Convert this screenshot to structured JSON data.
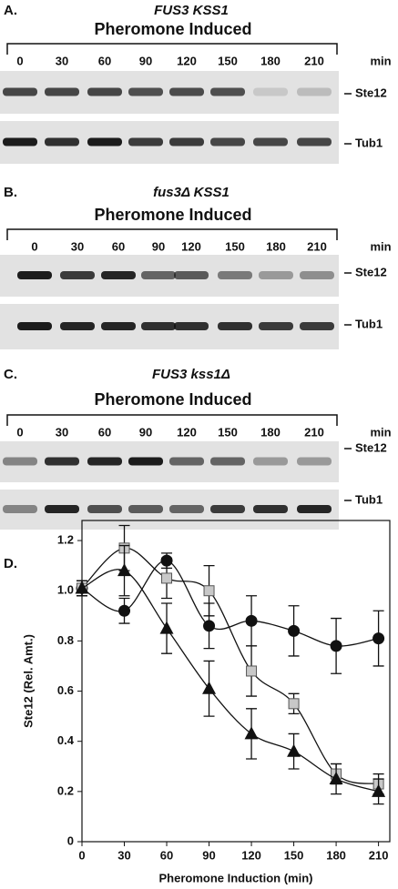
{
  "panels": [
    {
      "label": "A.",
      "genotype": "FUS3 KSS1",
      "title": "Pheromone Induced",
      "lanes": [
        "0",
        "30",
        "60",
        "90",
        "120",
        "150",
        "180",
        "210"
      ],
      "unit": "min",
      "bands": [
        "Ste12",
        "Tub1"
      ]
    },
    {
      "label": "B.",
      "genotype": "fus3Δ KSS1",
      "title": "Pheromone Induced",
      "lanes": [
        "0",
        "30",
        "60",
        "90",
        "120",
        "150",
        "180",
        "210"
      ],
      "unit": "min",
      "bands": [
        "Ste12",
        "Tub1"
      ]
    },
    {
      "label": "C.",
      "genotype": "FUS3 kss1Δ",
      "title": "Pheromone Induced",
      "lanes": [
        "0",
        "30",
        "60",
        "90",
        "120",
        "150",
        "180",
        "210"
      ],
      "unit": "min",
      "bands": [
        "Ste12",
        "Tub1"
      ]
    }
  ],
  "chart_data": {
    "type": "line",
    "panel_label": "D.",
    "x_label": "Pheromone Induction  (min)",
    "y_label": "Ste12 (Rel. Amt.)",
    "x": [
      0,
      30,
      60,
      90,
      120,
      150,
      180,
      210
    ],
    "xlim": [
      0,
      218
    ],
    "xticks": [
      0,
      30,
      60,
      90,
      120,
      150,
      180,
      210
    ],
    "ylim": [
      0,
      1.28
    ],
    "yticks": [
      0,
      0.2,
      0.4,
      0.6,
      0.8,
      {
        "value": 1,
        "label": "1.0"
      },
      1.2
    ],
    "series": [
      {
        "marker": "circle",
        "color": "#111111",
        "values": [
          1.01,
          0.92,
          1.12,
          0.86,
          0.88,
          0.84,
          0.78,
          0.81
        ],
        "errors": [
          0.03,
          0.05,
          0.03,
          0.09,
          0.1,
          0.1,
          0.11,
          0.11
        ]
      },
      {
        "marker": "square",
        "color": "#c8c8c8",
        "values": [
          1.01,
          1.17,
          1.05,
          1.0,
          0.68,
          0.55,
          0.27,
          0.23
        ],
        "errors": [
          0.03,
          0.09,
          0.08,
          0.1,
          0.1,
          0.04,
          0.04,
          0.04
        ]
      },
      {
        "marker": "triangle",
        "color": "#111111",
        "values": [
          1.01,
          1.08,
          0.85,
          0.61,
          0.43,
          0.36,
          0.25,
          0.2
        ],
        "errors": [
          0.03,
          0.1,
          0.1,
          0.11,
          0.1,
          0.07,
          0.06,
          0.05
        ]
      }
    ]
  }
}
